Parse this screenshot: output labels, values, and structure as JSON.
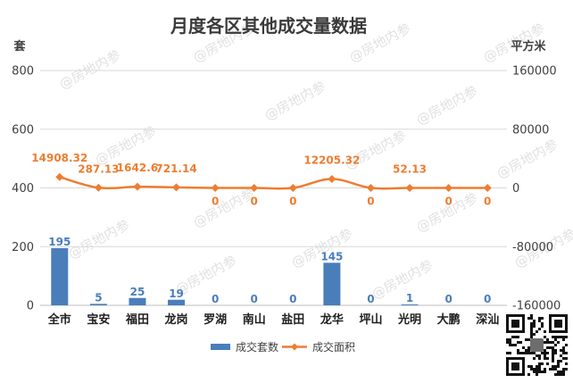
{
  "chart_data": {
    "type": "bar",
    "title": "月度各区其他成交量数据",
    "categories": [
      "全市",
      "宝安",
      "福田",
      "龙岗",
      "罗湖",
      "南山",
      "盐田",
      "龙华",
      "坪山",
      "光明",
      "大鹏",
      "深汕"
    ],
    "series": [
      {
        "name": "成交套数",
        "type": "bar",
        "axis": "left",
        "color": "#4a7ebb",
        "values": [
          195,
          5,
          25,
          19,
          0,
          0,
          0,
          145,
          0,
          1,
          0,
          0
        ],
        "labels": [
          "195",
          "5",
          "25",
          "19",
          "0",
          "0",
          "0",
          "145",
          "0",
          "1",
          "0",
          "0"
        ]
      },
      {
        "name": "成交面积",
        "type": "line",
        "axis": "right",
        "color": "#ed7d31",
        "values": [
          14908.32,
          287.13,
          1642.6,
          721.14,
          0,
          0,
          0,
          12205.32,
          0,
          52.13,
          0,
          0
        ],
        "labels": [
          "14908.32",
          "287.13",
          "1642.6",
          "721.14",
          "0",
          "0",
          "0",
          "12205.32",
          "0",
          "52.13",
          "0",
          "0"
        ]
      }
    ],
    "y_left": {
      "label": "套",
      "range": [
        0,
        800
      ],
      "ticks": [
        0,
        200,
        400,
        600,
        800
      ],
      "tick_labels": [
        "0",
        "200",
        "400",
        "600",
        "800"
      ]
    },
    "y_right": {
      "label": "平方米",
      "range": [
        -160000,
        160000
      ],
      "ticks": [
        -160000,
        -80000,
        0,
        80000,
        160000
      ],
      "tick_labels": [
        "-160000",
        "-80000",
        "0",
        "80000",
        "160000"
      ]
    },
    "grid": true,
    "legend_position": "bottom"
  },
  "watermark": "@房地内参"
}
